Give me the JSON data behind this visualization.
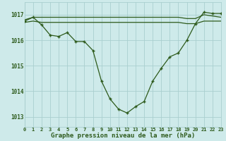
{
  "line1_y": [
    1016.8,
    1016.9,
    1016.9,
    1016.9,
    1016.9,
    1016.9,
    1016.9,
    1016.9,
    1016.9,
    1016.9,
    1016.9,
    1016.9,
    1016.9,
    1016.9,
    1016.9,
    1016.9,
    1016.9,
    1016.9,
    1016.9,
    1016.85,
    1016.85,
    1017.0,
    1016.95,
    1016.9
  ],
  "line2_y": [
    1016.7,
    1016.75,
    1016.7,
    1016.7,
    1016.7,
    1016.7,
    1016.7,
    1016.7,
    1016.7,
    1016.7,
    1016.7,
    1016.7,
    1016.7,
    1016.7,
    1016.7,
    1016.7,
    1016.7,
    1016.7,
    1016.7,
    1016.65,
    1016.65,
    1016.75,
    1016.75,
    1016.75
  ],
  "line3_y": [
    1016.75,
    1016.9,
    1016.6,
    1016.2,
    1016.15,
    1016.3,
    1015.95,
    1015.95,
    1015.6,
    1014.4,
    1013.7,
    1013.3,
    1013.15,
    1013.4,
    1013.6,
    1014.4,
    1014.9,
    1015.35,
    1015.5,
    1016.0,
    1016.65,
    1017.1,
    1017.05,
    1017.05
  ],
  "x": [
    0,
    1,
    2,
    3,
    4,
    5,
    6,
    7,
    8,
    9,
    10,
    11,
    12,
    13,
    14,
    15,
    16,
    17,
    18,
    19,
    20,
    21,
    22,
    23
  ],
  "bg_color": "#ceeaea",
  "grid_color": "#aacfcf",
  "line_color": "#2d5a1b",
  "xlabel": "Graphe pression niveau de la mer (hPa)",
  "xlim": [
    0,
    23
  ],
  "ylim": [
    1012.6,
    1017.5
  ],
  "yticks": [
    1013,
    1014,
    1015,
    1016,
    1017
  ],
  "xticks": [
    0,
    1,
    2,
    3,
    4,
    5,
    6,
    7,
    8,
    9,
    10,
    11,
    12,
    13,
    14,
    15,
    16,
    17,
    18,
    19,
    20,
    21,
    22,
    23
  ]
}
